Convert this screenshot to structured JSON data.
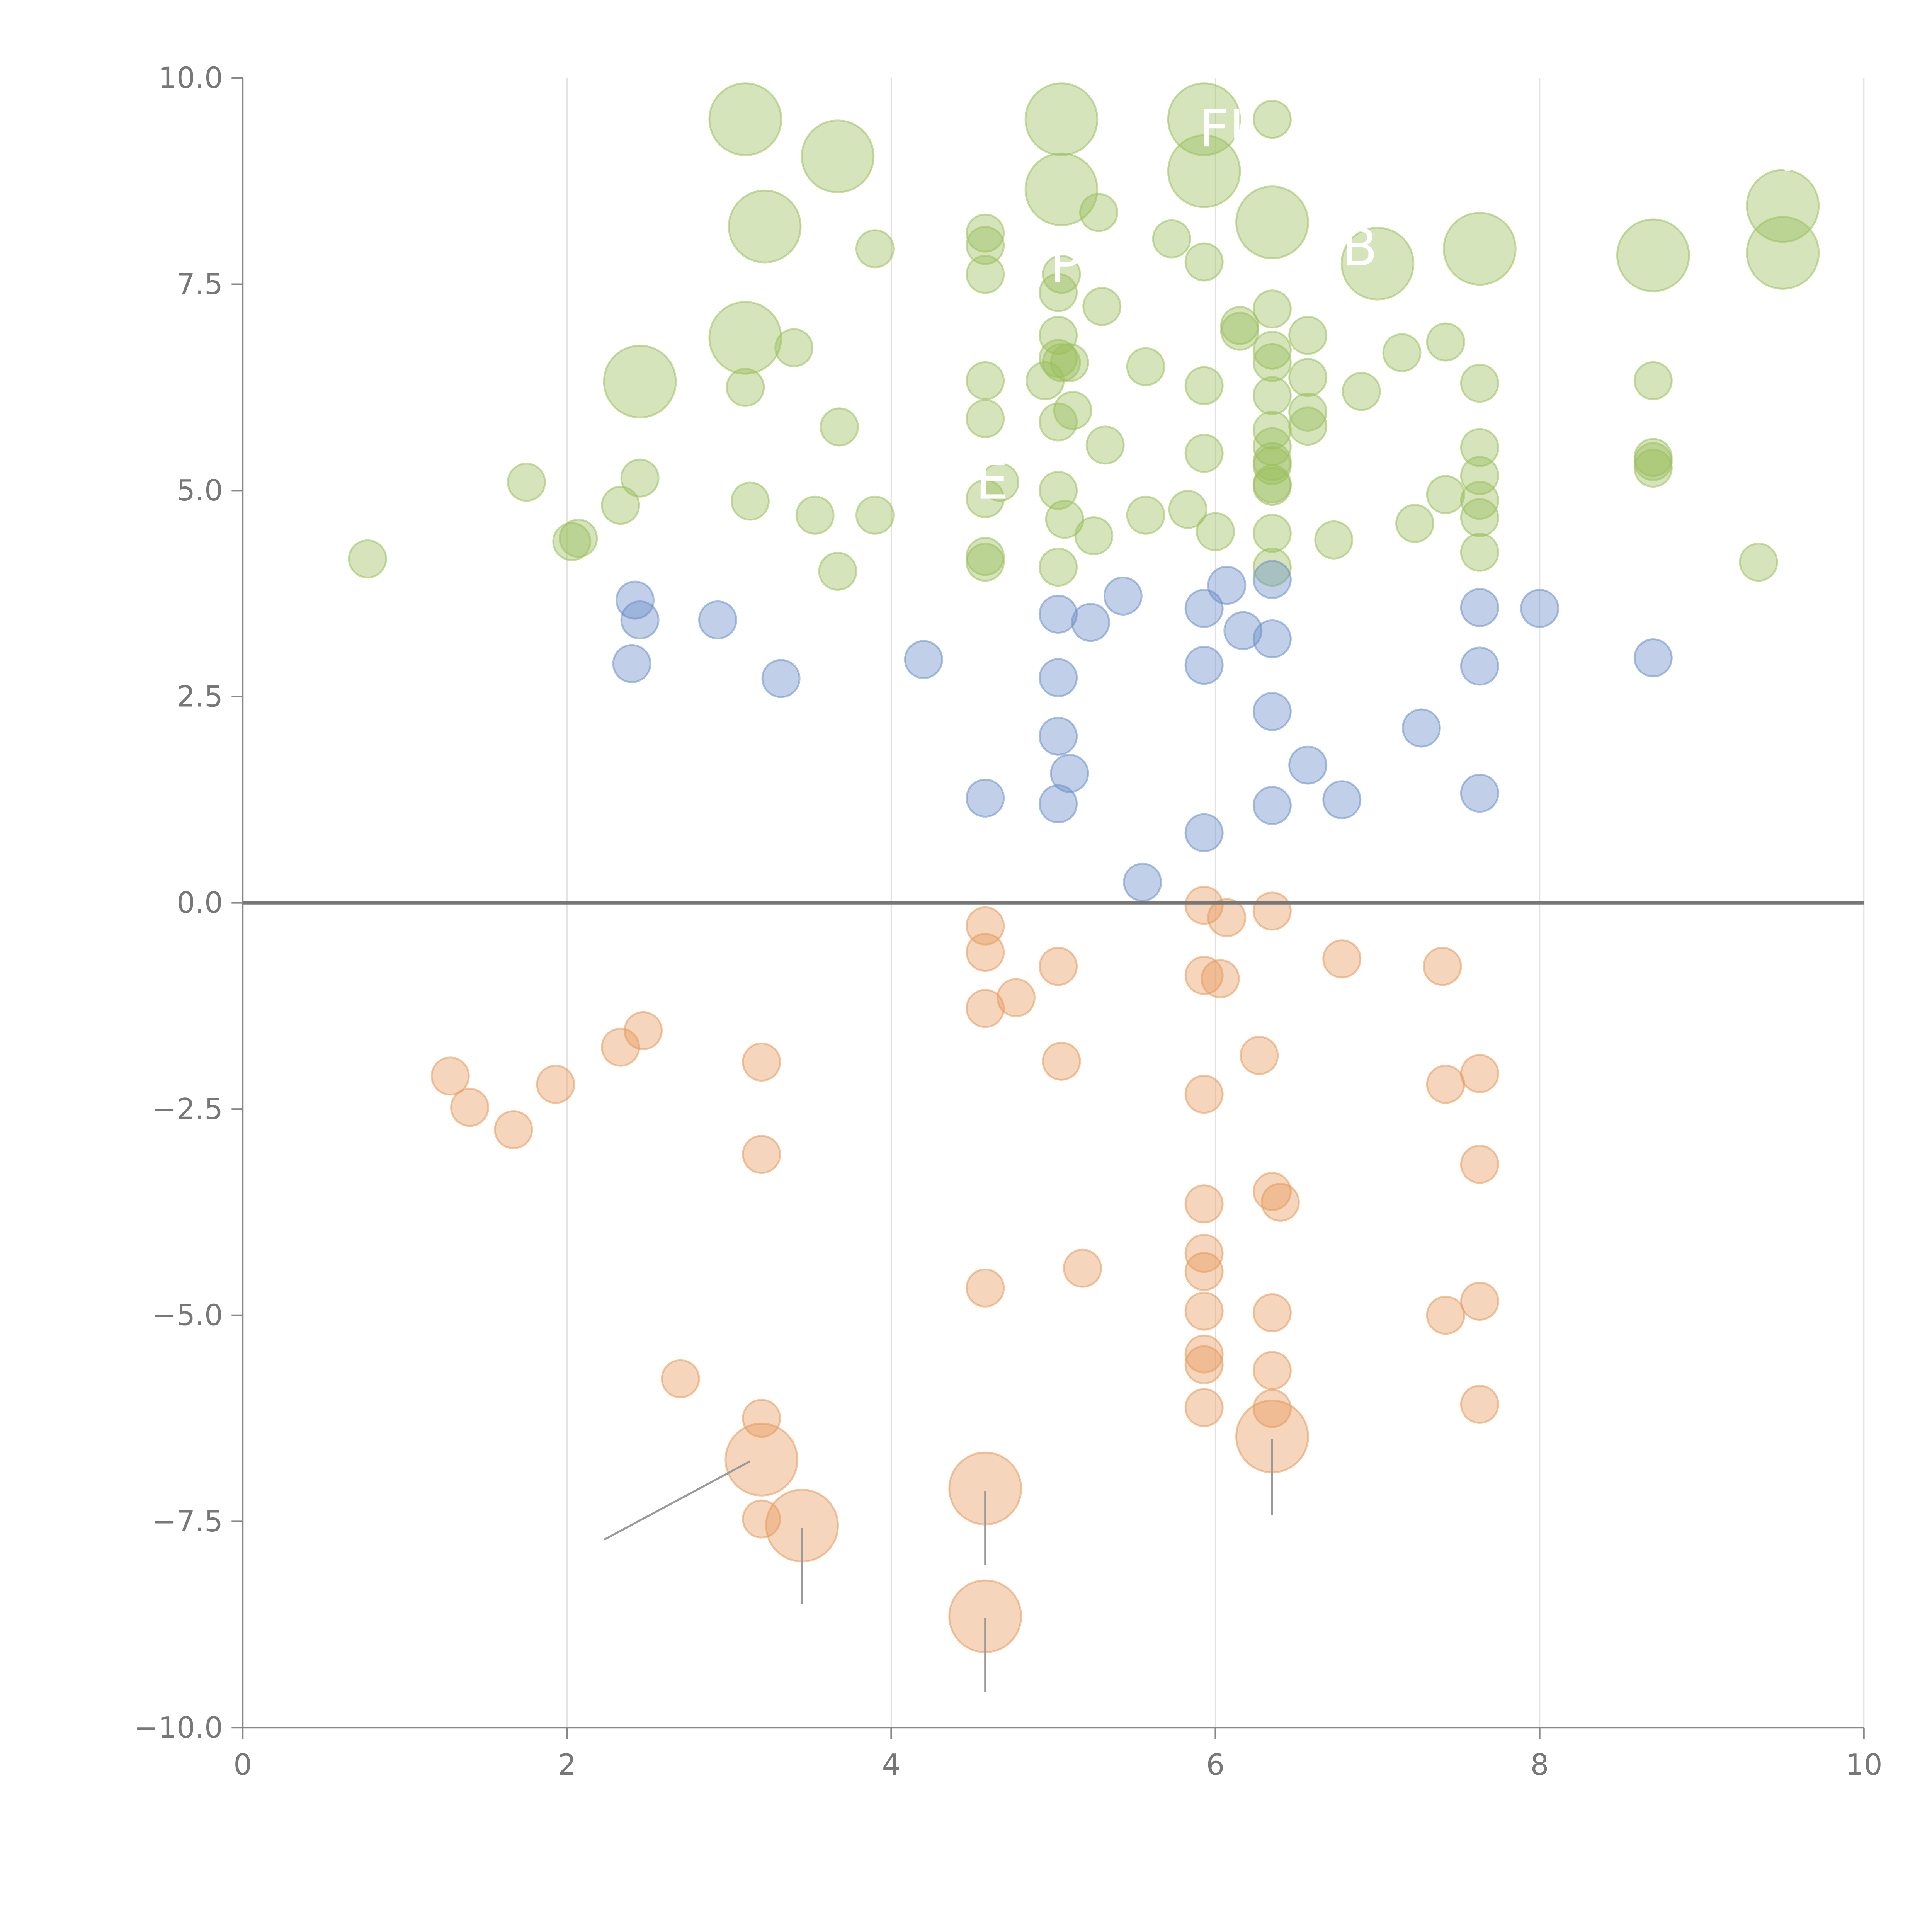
{
  "chart_data": {
    "type": "scatter",
    "title": "",
    "xlabel": "",
    "ylabel": "",
    "xlim": [
      0,
      10
    ],
    "ylim": [
      -10,
      10
    ],
    "x_ticks": [
      0,
      2,
      4,
      6,
      8,
      10
    ],
    "y_ticks": [
      -10,
      -7.5,
      -5,
      -2.5,
      0,
      2.5,
      5,
      7.5,
      10
    ],
    "x_tick_labels": [
      "0",
      "2",
      "4",
      "6",
      "8",
      "10"
    ],
    "y_tick_labels": [
      "−10.0",
      "−7.5",
      "−5.0",
      "−2.5",
      "0.0",
      "2.5",
      "5.0",
      "7.5",
      "10.0"
    ],
    "grid": "vertical",
    "zero_line": true,
    "legend": "none",
    "colors": {
      "green": "#9cbf5e",
      "blue": "#6b8fc9",
      "orange": "#e69a5c",
      "axis": "#888888",
      "zero_line": "#777777",
      "grid": "#e2e2e2",
      "leader": "#9a9a9a",
      "white": "#ffffff"
    },
    "series": [
      {
        "color_key": "green",
        "points": [
          [
            3.1,
            9.5,
            "L"
          ],
          [
            3.67,
            9.05,
            "L"
          ],
          [
            3.22,
            8.2,
            "L"
          ],
          [
            3.1,
            6.85,
            "L"
          ],
          [
            2.45,
            6.32,
            "L"
          ],
          [
            5.05,
            9.5,
            "L"
          ],
          [
            5.05,
            8.65,
            "L"
          ],
          [
            5.93,
            9.5,
            "L"
          ],
          [
            5.93,
            8.87,
            "L"
          ],
          [
            6.35,
            8.25,
            "L"
          ],
          [
            7.0,
            7.75,
            "L"
          ],
          [
            7.63,
            7.93,
            "L"
          ],
          [
            8.7,
            7.85,
            "L"
          ],
          [
            9.5,
            8.45,
            "L"
          ],
          [
            9.5,
            7.88,
            "L"
          ],
          [
            0.77,
            4.17,
            "S"
          ],
          [
            1.75,
            5.1,
            "S"
          ],
          [
            2.03,
            4.38,
            "S"
          ],
          [
            2.07,
            4.42,
            "S"
          ],
          [
            2.33,
            4.82,
            "S"
          ],
          [
            2.45,
            5.15,
            "S"
          ],
          [
            3.1,
            6.25,
            "S"
          ],
          [
            3.13,
            4.87,
            "S"
          ],
          [
            3.4,
            6.73,
            "S"
          ],
          [
            3.53,
            4.7,
            "S"
          ],
          [
            3.67,
            4.02,
            "S"
          ],
          [
            3.68,
            5.77,
            "S"
          ],
          [
            3.9,
            7.93,
            "S"
          ],
          [
            3.9,
            4.7,
            "S"
          ],
          [
            4.58,
            8.12,
            "S"
          ],
          [
            4.58,
            7.97,
            "S"
          ],
          [
            4.58,
            7.62,
            "S"
          ],
          [
            4.58,
            6.33,
            "S"
          ],
          [
            4.58,
            5.87,
            "S"
          ],
          [
            4.58,
            4.9,
            "S"
          ],
          [
            4.58,
            4.2,
            "S"
          ],
          [
            4.58,
            4.13,
            "S"
          ],
          [
            4.67,
            5.1,
            "S"
          ],
          [
            4.95,
            6.33,
            "S"
          ],
          [
            5.03,
            6.88,
            "S"
          ],
          [
            5.03,
            6.6,
            "S"
          ],
          [
            5.05,
            7.62,
            "S"
          ],
          [
            5.03,
            7.4,
            "S"
          ],
          [
            5.05,
            6.55,
            "S"
          ],
          [
            5.03,
            5.83,
            "S"
          ],
          [
            5.03,
            5.0,
            "S"
          ],
          [
            5.03,
            4.07,
            "S"
          ],
          [
            5.07,
            4.65,
            "S"
          ],
          [
            5.1,
            6.55,
            "S"
          ],
          [
            5.12,
            5.97,
            "S"
          ],
          [
            5.25,
            4.45,
            "S"
          ],
          [
            5.28,
            8.37,
            "S"
          ],
          [
            5.3,
            7.23,
            "S"
          ],
          [
            5.32,
            5.55,
            "S"
          ],
          [
            5.57,
            6.5,
            "S"
          ],
          [
            5.57,
            4.7,
            "S"
          ],
          [
            5.73,
            8.05,
            "S"
          ],
          [
            5.83,
            4.77,
            "S"
          ],
          [
            5.93,
            7.77,
            "S"
          ],
          [
            5.93,
            6.27,
            "S"
          ],
          [
            5.93,
            5.45,
            "S"
          ],
          [
            6.0,
            4.5,
            "S"
          ],
          [
            6.15,
            7.0,
            "S"
          ],
          [
            6.15,
            6.93,
            "S"
          ],
          [
            6.35,
            9.5,
            "S"
          ],
          [
            6.35,
            7.2,
            "S"
          ],
          [
            6.35,
            6.7,
            "S"
          ],
          [
            6.35,
            6.55,
            "S"
          ],
          [
            6.35,
            6.15,
            "S"
          ],
          [
            6.35,
            5.73,
            "S"
          ],
          [
            6.35,
            5.53,
            "S"
          ],
          [
            6.35,
            5.35,
            "S"
          ],
          [
            6.35,
            5.3,
            "S"
          ],
          [
            6.35,
            5.08,
            "S"
          ],
          [
            6.35,
            5.05,
            "S"
          ],
          [
            6.35,
            4.48,
            "S"
          ],
          [
            6.35,
            4.07,
            "S"
          ],
          [
            6.57,
            6.88,
            "S"
          ],
          [
            6.57,
            6.37,
            "S"
          ],
          [
            6.57,
            5.95,
            "S"
          ],
          [
            6.57,
            5.78,
            "S"
          ],
          [
            6.73,
            4.4,
            "S"
          ],
          [
            6.9,
            6.2,
            "S"
          ],
          [
            7.15,
            6.67,
            "S"
          ],
          [
            7.23,
            4.6,
            "S"
          ],
          [
            7.42,
            6.8,
            "S"
          ],
          [
            7.42,
            4.95,
            "S"
          ],
          [
            7.63,
            6.3,
            "S"
          ],
          [
            7.63,
            5.52,
            "S"
          ],
          [
            7.63,
            5.18,
            "S"
          ],
          [
            7.63,
            4.88,
            "S"
          ],
          [
            7.63,
            4.67,
            "S"
          ],
          [
            7.63,
            4.25,
            "S"
          ],
          [
            8.7,
            6.33,
            "S"
          ],
          [
            8.7,
            5.4,
            "S"
          ],
          [
            8.7,
            5.35,
            "S"
          ],
          [
            8.7,
            5.27,
            "S"
          ],
          [
            9.35,
            4.13,
            "S"
          ]
        ]
      },
      {
        "color_key": "blue",
        "points": [
          [
            2.42,
            3.67,
            "S"
          ],
          [
            2.45,
            3.43,
            "S"
          ],
          [
            2.4,
            2.9,
            "S"
          ],
          [
            2.93,
            3.43,
            "S"
          ],
          [
            3.32,
            2.72,
            "S"
          ],
          [
            4.2,
            2.95,
            "S"
          ],
          [
            4.58,
            1.27,
            "S"
          ],
          [
            5.03,
            3.5,
            "S"
          ],
          [
            5.03,
            2.73,
            "S"
          ],
          [
            5.03,
            2.02,
            "S"
          ],
          [
            5.1,
            1.57,
            "S"
          ],
          [
            5.03,
            1.2,
            "S"
          ],
          [
            5.23,
            3.4,
            "S"
          ],
          [
            5.43,
            3.72,
            "S"
          ],
          [
            5.55,
            0.25,
            "S"
          ],
          [
            5.93,
            3.57,
            "S"
          ],
          [
            5.93,
            2.88,
            "S"
          ],
          [
            5.93,
            0.85,
            "S"
          ],
          [
            6.07,
            3.85,
            "S"
          ],
          [
            6.17,
            3.3,
            "S"
          ],
          [
            6.35,
            3.92,
            "S"
          ],
          [
            6.35,
            3.2,
            "S"
          ],
          [
            6.35,
            2.32,
            "S"
          ],
          [
            6.35,
            1.18,
            "S"
          ],
          [
            6.57,
            1.67,
            "S"
          ],
          [
            6.78,
            1.25,
            "S"
          ],
          [
            7.27,
            2.12,
            "S"
          ],
          [
            7.63,
            3.58,
            "S"
          ],
          [
            7.63,
            2.87,
            "S"
          ],
          [
            7.63,
            1.33,
            "S"
          ],
          [
            8.0,
            3.57,
            "S"
          ],
          [
            8.7,
            2.97,
            "S"
          ]
        ]
      },
      {
        "color_key": "orange",
        "points": [
          [
            1.28,
            -2.1,
            "S"
          ],
          [
            1.4,
            -2.48,
            "S"
          ],
          [
            1.67,
            -2.75,
            "S"
          ],
          [
            1.93,
            -2.2,
            "S"
          ],
          [
            2.33,
            -1.75,
            "S"
          ],
          [
            2.47,
            -1.55,
            "S"
          ],
          [
            2.7,
            -5.77,
            "S"
          ],
          [
            3.2,
            -1.93,
            "S"
          ],
          [
            3.2,
            -3.05,
            "S"
          ],
          [
            3.2,
            -6.25,
            "S"
          ],
          [
            3.2,
            -7.47,
            "S"
          ],
          [
            4.58,
            -0.28,
            "S"
          ],
          [
            4.58,
            -0.6,
            "S"
          ],
          [
            4.58,
            -1.28,
            "S"
          ],
          [
            4.58,
            -4.67,
            "S"
          ],
          [
            4.77,
            -1.15,
            "S"
          ],
          [
            5.03,
            -0.77,
            "S"
          ],
          [
            5.05,
            -1.92,
            "S"
          ],
          [
            5.18,
            -4.43,
            "S"
          ],
          [
            5.93,
            -0.03,
            "S"
          ],
          [
            5.93,
            -0.88,
            "S"
          ],
          [
            5.93,
            -2.32,
            "S"
          ],
          [
            5.93,
            -3.65,
            "S"
          ],
          [
            5.93,
            -4.25,
            "S"
          ],
          [
            5.93,
            -4.47,
            "S"
          ],
          [
            5.93,
            -4.95,
            "S"
          ],
          [
            5.93,
            -5.47,
            "S"
          ],
          [
            5.93,
            -5.6,
            "S"
          ],
          [
            5.93,
            -6.12,
            "S"
          ],
          [
            6.03,
            -0.92,
            "S"
          ],
          [
            6.07,
            -0.18,
            "S"
          ],
          [
            6.27,
            -1.85,
            "S"
          ],
          [
            6.35,
            -0.1,
            "S"
          ],
          [
            6.35,
            -3.5,
            "S"
          ],
          [
            6.4,
            -3.63,
            "S"
          ],
          [
            6.35,
            -4.97,
            "S"
          ],
          [
            6.35,
            -5.67,
            "S"
          ],
          [
            6.35,
            -6.13,
            "S"
          ],
          [
            6.78,
            -0.68,
            "S"
          ],
          [
            7.4,
            -0.77,
            "S"
          ],
          [
            7.42,
            -2.2,
            "S"
          ],
          [
            7.42,
            -5.0,
            "S"
          ],
          [
            7.63,
            -2.07,
            "S"
          ],
          [
            7.63,
            -3.17,
            "S"
          ],
          [
            7.63,
            -4.83,
            "S"
          ],
          [
            7.63,
            -6.08,
            "S"
          ],
          [
            3.2,
            -6.75,
            "L"
          ],
          [
            3.45,
            -7.55,
            "L"
          ],
          [
            4.58,
            -7.1,
            "L"
          ],
          [
            4.58,
            -8.65,
            "L"
          ],
          [
            6.35,
            -6.47,
            "L"
          ]
        ]
      }
    ],
    "leader_lines": [
      [
        3.13,
        -6.77,
        2.23,
        -7.72
      ],
      [
        3.45,
        -7.58,
        3.45,
        -8.5
      ],
      [
        4.58,
        -7.13,
        4.58,
        -8.03
      ],
      [
        4.58,
        -8.67,
        4.58,
        -9.57
      ],
      [
        6.35,
        -6.5,
        6.35,
        -7.42
      ]
    ],
    "overlay_labels": [
      {
        "text": "FI",
        "x": 5.9,
        "y": 9.17
      },
      {
        "text": "P",
        "x": 4.98,
        "y": 7.53
      },
      {
        "text": "B",
        "x": 6.78,
        "y": 7.73
      },
      {
        "text": "E",
        "x": 4.52,
        "y": 4.9
      },
      {
        "text": "A",
        "x": 9.33,
        "y": 8.87
      }
    ]
  }
}
